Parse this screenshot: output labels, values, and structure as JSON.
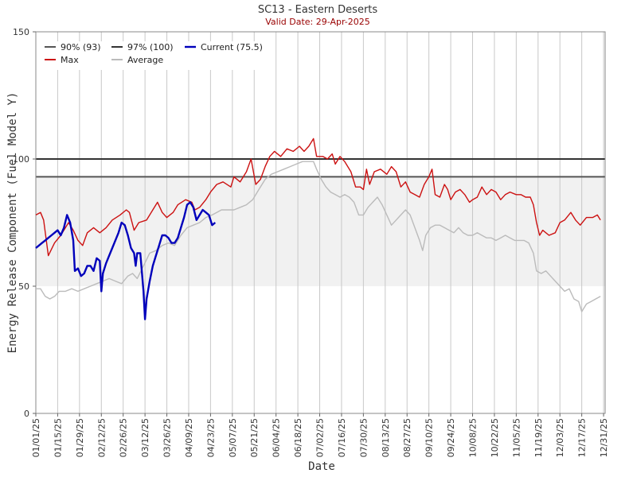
{
  "chart_data": {
    "type": "line",
    "title": "SC13 - Eastern Deserts",
    "subtitle": "Valid Date: 29-Apr-2025",
    "xlabel": "Date",
    "ylabel": "Energy Release Component (Fuel Model Y)",
    "ylim": [
      0,
      150
    ],
    "yticks": [
      0,
      50,
      100,
      150
    ],
    "xlim": [
      1,
      366
    ],
    "xticks": [
      {
        "day": 1,
        "label": "01/01/25"
      },
      {
        "day": 15,
        "label": "01/15/25"
      },
      {
        "day": 29,
        "label": "01/29/25"
      },
      {
        "day": 43,
        "label": "02/12/25"
      },
      {
        "day": 57,
        "label": "02/26/25"
      },
      {
        "day": 71,
        "label": "03/12/25"
      },
      {
        "day": 85,
        "label": "03/26/25"
      },
      {
        "day": 99,
        "label": "04/09/25"
      },
      {
        "day": 113,
        "label": "04/23/25"
      },
      {
        "day": 127,
        "label": "05/07/25"
      },
      {
        "day": 141,
        "label": "05/21/25"
      },
      {
        "day": 155,
        "label": "06/04/25"
      },
      {
        "day": 169,
        "label": "06/18/25"
      },
      {
        "day": 183,
        "label": "07/02/25"
      },
      {
        "day": 197,
        "label": "07/16/25"
      },
      {
        "day": 211,
        "label": "07/30/25"
      },
      {
        "day": 225,
        "label": "08/13/25"
      },
      {
        "day": 239,
        "label": "08/27/25"
      },
      {
        "day": 253,
        "label": "09/10/25"
      },
      {
        "day": 267,
        "label": "09/24/25"
      },
      {
        "day": 281,
        "label": "10/08/25"
      },
      {
        "day": 295,
        "label": "10/22/25"
      },
      {
        "day": 309,
        "label": "11/05/25"
      },
      {
        "day": 323,
        "label": "11/19/25"
      },
      {
        "day": 337,
        "label": "12/03/25"
      },
      {
        "day": 351,
        "label": "12/17/25"
      },
      {
        "day": 365,
        "label": "12/31/25"
      }
    ],
    "grid": "vertical",
    "shaded_band": [
      50,
      93
    ],
    "legend_position": "top-left",
    "legend": [
      {
        "label": "90% (93)",
        "color": "#555555"
      },
      {
        "label": "97% (100)",
        "color": "#333333"
      },
      {
        "label": "Current (75.5)",
        "color": "#0000bb"
      },
      {
        "label": "Max",
        "color": "#cc1111"
      },
      {
        "label": "Average",
        "color": "#bbbbbb"
      }
    ],
    "thresholds": [
      {
        "name": "90%",
        "value": 93,
        "color": "#555555"
      },
      {
        "name": "97%",
        "value": 100,
        "color": "#333333"
      }
    ],
    "series": [
      {
        "name": "Max",
        "color": "#cc1111",
        "points": [
          [
            1,
            78
          ],
          [
            4,
            79
          ],
          [
            6,
            76
          ],
          [
            9,
            62
          ],
          [
            13,
            67
          ],
          [
            17,
            70
          ],
          [
            20,
            73
          ],
          [
            22,
            75
          ],
          [
            25,
            72
          ],
          [
            28,
            68
          ],
          [
            31,
            66
          ],
          [
            34,
            71
          ],
          [
            38,
            73
          ],
          [
            42,
            71
          ],
          [
            46,
            73
          ],
          [
            50,
            76
          ],
          [
            55,
            78
          ],
          [
            59,
            80
          ],
          [
            61,
            79
          ],
          [
            64,
            72
          ],
          [
            67,
            75
          ],
          [
            72,
            76
          ],
          [
            76,
            80
          ],
          [
            79,
            83
          ],
          [
            82,
            79
          ],
          [
            85,
            77
          ],
          [
            89,
            79
          ],
          [
            92,
            82
          ],
          [
            97,
            84
          ],
          [
            101,
            83
          ],
          [
            103,
            80
          ],
          [
            106,
            81
          ],
          [
            110,
            84
          ],
          [
            113,
            87
          ],
          [
            117,
            90
          ],
          [
            121,
            91
          ],
          [
            126,
            89
          ],
          [
            128,
            93
          ],
          [
            132,
            91
          ],
          [
            136,
            95
          ],
          [
            139,
            100
          ],
          [
            142,
            90
          ],
          [
            145,
            92
          ],
          [
            148,
            97
          ],
          [
            151,
            101
          ],
          [
            154,
            103
          ],
          [
            158,
            101
          ],
          [
            162,
            104
          ],
          [
            166,
            103
          ],
          [
            170,
            105
          ],
          [
            173,
            103
          ],
          [
            176,
            105
          ],
          [
            179,
            108
          ],
          [
            181,
            101
          ],
          [
            185,
            101
          ],
          [
            188,
            100
          ],
          [
            191,
            102
          ],
          [
            193,
            98
          ],
          [
            196,
            101
          ],
          [
            199,
            99
          ],
          [
            203,
            95
          ],
          [
            206,
            89
          ],
          [
            209,
            89
          ],
          [
            211,
            88
          ],
          [
            213,
            96
          ],
          [
            215,
            90
          ],
          [
            218,
            95
          ],
          [
            222,
            96
          ],
          [
            226,
            94
          ],
          [
            229,
            97
          ],
          [
            232,
            95
          ],
          [
            235,
            89
          ],
          [
            238,
            91
          ],
          [
            241,
            87
          ],
          [
            244,
            86
          ],
          [
            247,
            85
          ],
          [
            250,
            90
          ],
          [
            253,
            93
          ],
          [
            255,
            96
          ],
          [
            257,
            86
          ],
          [
            260,
            85
          ],
          [
            263,
            90
          ],
          [
            265,
            88
          ],
          [
            267,
            84
          ],
          [
            270,
            87
          ],
          [
            273,
            88
          ],
          [
            276,
            86
          ],
          [
            279,
            83
          ],
          [
            281,
            84
          ],
          [
            284,
            85
          ],
          [
            287,
            89
          ],
          [
            290,
            86
          ],
          [
            293,
            88
          ],
          [
            296,
            87
          ],
          [
            299,
            84
          ],
          [
            302,
            86
          ],
          [
            305,
            87
          ],
          [
            309,
            86
          ],
          [
            312,
            86
          ],
          [
            315,
            85
          ],
          [
            318,
            85
          ],
          [
            320,
            82
          ],
          [
            322,
            75
          ],
          [
            324,
            70
          ],
          [
            326,
            72
          ],
          [
            330,
            70
          ],
          [
            334,
            71
          ],
          [
            337,
            75
          ],
          [
            340,
            76
          ],
          [
            344,
            79
          ],
          [
            347,
            76
          ],
          [
            350,
            74
          ],
          [
            354,
            77
          ],
          [
            358,
            77
          ],
          [
            361,
            78
          ],
          [
            363,
            76
          ]
        ]
      },
      {
        "name": "Average",
        "color": "#bbbbbb",
        "points": [
          [
            1,
            49
          ],
          [
            4,
            49
          ],
          [
            7,
            46
          ],
          [
            10,
            45
          ],
          [
            13,
            46
          ],
          [
            16,
            48
          ],
          [
            20,
            48
          ],
          [
            24,
            49
          ],
          [
            28,
            48
          ],
          [
            32,
            49
          ],
          [
            36,
            50
          ],
          [
            40,
            51
          ],
          [
            44,
            52
          ],
          [
            48,
            53
          ],
          [
            52,
            52
          ],
          [
            56,
            51
          ],
          [
            60,
            54
          ],
          [
            63,
            55
          ],
          [
            66,
            53
          ],
          [
            70,
            58
          ],
          [
            74,
            63
          ],
          [
            78,
            64
          ],
          [
            82,
            66
          ],
          [
            86,
            67
          ],
          [
            90,
            66
          ],
          [
            94,
            70
          ],
          [
            98,
            73
          ],
          [
            102,
            74
          ],
          [
            106,
            75
          ],
          [
            110,
            77
          ],
          [
            114,
            78
          ],
          [
            117,
            79
          ],
          [
            120,
            80
          ],
          [
            124,
            80
          ],
          [
            128,
            80
          ],
          [
            132,
            81
          ],
          [
            136,
            82
          ],
          [
            140,
            84
          ],
          [
            144,
            88
          ],
          [
            148,
            92
          ],
          [
            152,
            94
          ],
          [
            156,
            95
          ],
          [
            160,
            96
          ],
          [
            164,
            97
          ],
          [
            168,
            98
          ],
          [
            172,
            99
          ],
          [
            176,
            99
          ],
          [
            179,
            99
          ],
          [
            181,
            96
          ],
          [
            184,
            92
          ],
          [
            187,
            89
          ],
          [
            190,
            87
          ],
          [
            193,
            86
          ],
          [
            196,
            85
          ],
          [
            199,
            86
          ],
          [
            202,
            85
          ],
          [
            205,
            83
          ],
          [
            208,
            78
          ],
          [
            211,
            78
          ],
          [
            214,
            81
          ],
          [
            217,
            83
          ],
          [
            220,
            85
          ],
          [
            223,
            82
          ],
          [
            226,
            78
          ],
          [
            229,
            74
          ],
          [
            232,
            76
          ],
          [
            235,
            78
          ],
          [
            238,
            80
          ],
          [
            241,
            78
          ],
          [
            244,
            73
          ],
          [
            247,
            68
          ],
          [
            249,
            64
          ],
          [
            251,
            70
          ],
          [
            254,
            73
          ],
          [
            257,
            74
          ],
          [
            260,
            74
          ],
          [
            263,
            73
          ],
          [
            266,
            72
          ],
          [
            269,
            71
          ],
          [
            272,
            73
          ],
          [
            275,
            71
          ],
          [
            278,
            70
          ],
          [
            281,
            70
          ],
          [
            284,
            71
          ],
          [
            287,
            70
          ],
          [
            290,
            69
          ],
          [
            293,
            69
          ],
          [
            296,
            68
          ],
          [
            299,
            69
          ],
          [
            302,
            70
          ],
          [
            305,
            69
          ],
          [
            308,
            68
          ],
          [
            311,
            68
          ],
          [
            314,
            68
          ],
          [
            317,
            67
          ],
          [
            320,
            63
          ],
          [
            322,
            56
          ],
          [
            325,
            55
          ],
          [
            328,
            56
          ],
          [
            331,
            54
          ],
          [
            334,
            52
          ],
          [
            337,
            50
          ],
          [
            340,
            48
          ],
          [
            343,
            49
          ],
          [
            346,
            45
          ],
          [
            349,
            44
          ],
          [
            351,
            40
          ],
          [
            354,
            43
          ],
          [
            357,
            44
          ],
          [
            360,
            45
          ],
          [
            363,
            46
          ]
        ]
      },
      {
        "name": "Current",
        "color": "#0000bb",
        "points": [
          [
            1,
            65
          ],
          [
            3,
            66
          ],
          [
            5,
            67
          ],
          [
            7,
            68
          ],
          [
            9,
            69
          ],
          [
            11,
            70
          ],
          [
            13,
            71
          ],
          [
            15,
            72
          ],
          [
            17,
            70
          ],
          [
            19,
            73
          ],
          [
            21,
            78
          ],
          [
            23,
            75
          ],
          [
            25,
            68
          ],
          [
            26,
            56
          ],
          [
            28,
            57
          ],
          [
            30,
            54
          ],
          [
            32,
            55
          ],
          [
            34,
            58
          ],
          [
            36,
            58
          ],
          [
            38,
            56
          ],
          [
            40,
            61
          ],
          [
            42,
            60
          ],
          [
            43,
            48
          ],
          [
            44,
            55
          ],
          [
            46,
            59
          ],
          [
            48,
            62
          ],
          [
            50,
            65
          ],
          [
            52,
            68
          ],
          [
            54,
            71
          ],
          [
            56,
            75
          ],
          [
            58,
            74
          ],
          [
            60,
            70
          ],
          [
            62,
            65
          ],
          [
            64,
            63
          ],
          [
            65,
            58
          ],
          [
            66,
            63
          ],
          [
            68,
            63
          ],
          [
            70,
            48
          ],
          [
            71,
            37
          ],
          [
            72,
            45
          ],
          [
            74,
            52
          ],
          [
            76,
            58
          ],
          [
            78,
            62
          ],
          [
            80,
            66
          ],
          [
            82,
            70
          ],
          [
            84,
            70
          ],
          [
            86,
            69
          ],
          [
            88,
            67
          ],
          [
            90,
            67
          ],
          [
            92,
            69
          ],
          [
            94,
            73
          ],
          [
            96,
            77
          ],
          [
            98,
            82
          ],
          [
            100,
            83
          ],
          [
            102,
            81
          ],
          [
            104,
            76
          ],
          [
            106,
            78
          ],
          [
            108,
            80
          ],
          [
            110,
            79
          ],
          [
            112,
            78
          ],
          [
            114,
            74
          ],
          [
            116,
            75
          ]
        ]
      }
    ]
  }
}
